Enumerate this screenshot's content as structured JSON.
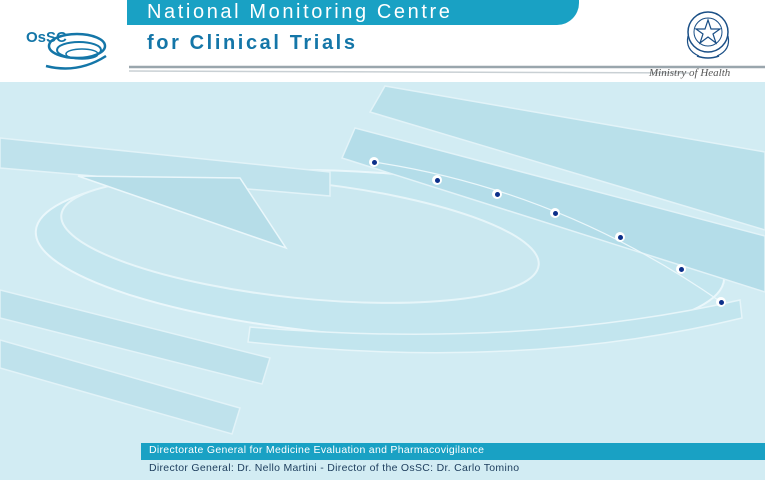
{
  "header": {
    "title_line1": "National Monitoring Centre",
    "title_line2": "for Clinical Trials",
    "logo_text": "OsSC",
    "ministry_text": "Ministry of Health"
  },
  "icons": {
    "logo": "ossc-logo-icon",
    "emblem": "italian-republic-emblem-icon"
  },
  "footer": {
    "line1": "Directorate General for Medicine Evaluation and Pharmacovigilance",
    "line2": "Director General:  Dr. Nello Martini - Director of the OsSC:  Dr. Carlo Tomino"
  },
  "colors": {
    "accent": "#19a1c4",
    "dark_blue": "#1476a8",
    "background": "#d2ecf3",
    "dot": "#0c2f8a"
  }
}
